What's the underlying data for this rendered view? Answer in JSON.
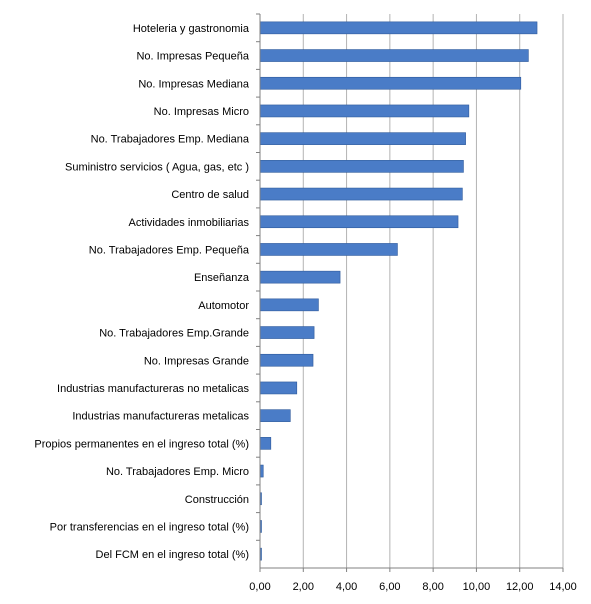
{
  "chart_data": {
    "type": "bar",
    "orientation": "horizontal",
    "categories": [
      "Hoteleria y gastronomia",
      "No. Impresas Pequeña",
      "No. Impresas Mediana",
      "No. Impresas Micro",
      "No. Trabajadores Emp. Mediana",
      "Suministro servicios ( Agua, gas, etc )",
      "Centro de salud",
      "Actividades inmobiliarias",
      "No. Trabajadores Emp. Pequeña",
      "Enseñanza",
      "Automotor",
      "No. Trabajadores  Emp.Grande",
      "No. Impresas Grande",
      "Industrias manufactureras no metalicas",
      "Industrias manufactureras metalicas",
      "Propios permanentes en el ingreso total  (%)",
      "No. Trabajadores Emp. Micro",
      "Construcción",
      "Por transferencias en el ingreso total (%)",
      "Del FCM en el ingreso total (%)"
    ],
    "values": [
      12.8,
      12.4,
      12.05,
      9.65,
      9.5,
      9.4,
      9.35,
      9.15,
      6.35,
      3.7,
      2.7,
      2.5,
      2.45,
      1.7,
      1.4,
      0.5,
      0.15,
      0.05,
      0.04,
      0.03
    ],
    "xlim": [
      0,
      14
    ],
    "xticks": [
      "0,00",
      "2,00",
      "4,00",
      "6,00",
      "8,00",
      "10,00",
      "12,00",
      "14,00"
    ],
    "grid": true,
    "colors": {
      "bar": "#4a7cc7",
      "bar_edge": "#2e5a9c",
      "grid": "#b3b3b3"
    }
  }
}
